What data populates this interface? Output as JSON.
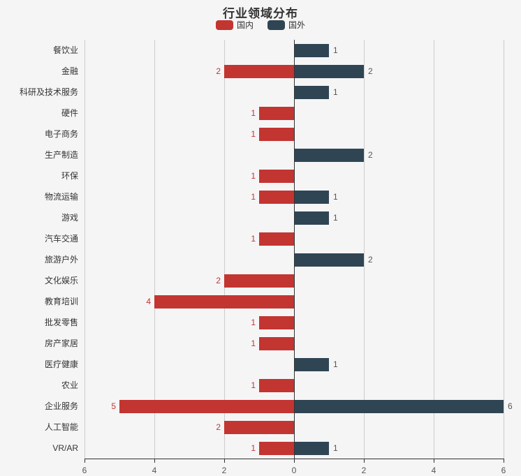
{
  "title": "行业领域分布",
  "legend": {
    "items": [
      {
        "label": "国内",
        "color": "#c23531"
      },
      {
        "label": "国外",
        "color": "#2f4554"
      }
    ]
  },
  "colors": {
    "domestic": "#c23531",
    "foreign": "#2f4554",
    "background": "#f5f5f6",
    "gridline": "#cccccc",
    "axis": "#333333",
    "value_label_left": "#c23531",
    "value_label_right": "#555555"
  },
  "chart_data": {
    "type": "bar",
    "orientation": "horizontal-diverging",
    "title": "行业领域分布",
    "categories": [
      "餐饮业",
      "金融",
      "科研及技术服务",
      "硬件",
      "电子商务",
      "生产制造",
      "环保",
      "物流运输",
      "游戏",
      "汽车交通",
      "旅游户外",
      "文化娱乐",
      "教育培训",
      "批发零售",
      "房产家居",
      "医疗健康",
      "农业",
      "企业服务",
      "人工智能",
      "VR/AR"
    ],
    "series": [
      {
        "name": "国内",
        "side": "left",
        "color": "#c23531",
        "values": [
          0,
          2,
          0,
          1,
          1,
          0,
          1,
          1,
          0,
          1,
          0,
          2,
          4,
          1,
          1,
          0,
          1,
          5,
          2,
          1
        ]
      },
      {
        "name": "国外",
        "side": "right",
        "color": "#2f4554",
        "values": [
          1,
          2,
          1,
          0,
          0,
          2,
          0,
          1,
          1,
          0,
          2,
          0,
          0,
          0,
          0,
          1,
          0,
          6,
          0,
          1
        ]
      }
    ],
    "x_ticks": [
      "6",
      "4",
      "2",
      "0",
      "2",
      "4",
      "6"
    ],
    "xlim_per_side": [
      0,
      6
    ],
    "grid": true,
    "legend_position": "top",
    "show_value_labels": true,
    "zero_value_labels_hidden": true
  }
}
